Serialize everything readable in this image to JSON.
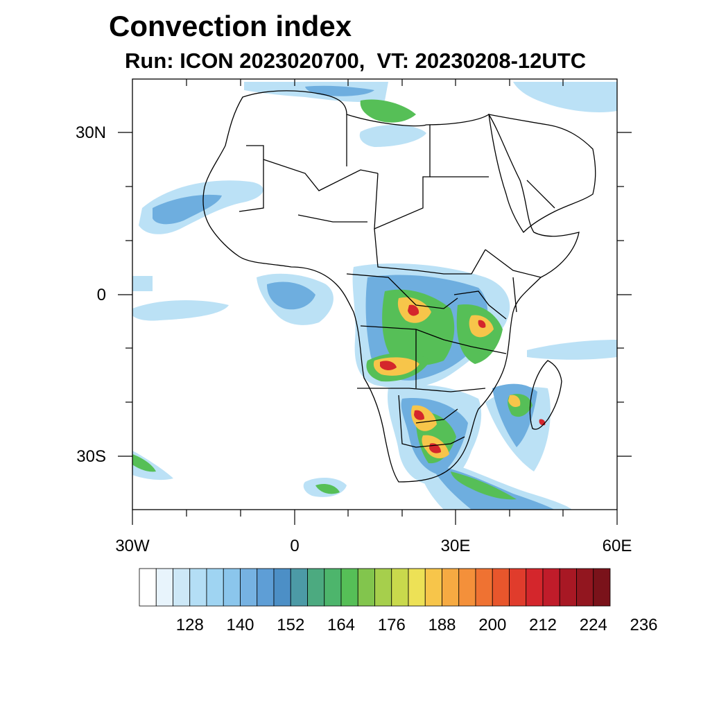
{
  "title": "Convection index",
  "subtitle": "Run: ICON 2023020700,  VT: 20230208-12UTC",
  "map": {
    "lon_range": [
      -30,
      60
    ],
    "lat_range": [
      -40,
      40
    ],
    "lon_ticks": [
      {
        "value": -30,
        "label": "30W"
      },
      {
        "value": 0,
        "label": "0"
      },
      {
        "value": 30,
        "label": "30E"
      },
      {
        "value": 60,
        "label": "60E"
      }
    ],
    "lat_ticks": [
      {
        "value": 30,
        "label": "30N"
      },
      {
        "value": 0,
        "label": "0"
      },
      {
        "value": -30,
        "label": "30S"
      }
    ]
  },
  "colorbar": {
    "colors": [
      "#ffffff",
      "#e8f4fc",
      "#cde8f7",
      "#b4def5",
      "#9fd4f2",
      "#8bc6ec",
      "#76b2e2",
      "#5e9ed6",
      "#4c8fc6",
      "#4c9aa6",
      "#4caa80",
      "#4db56c",
      "#56bf57",
      "#82c54d",
      "#a6cf4c",
      "#c9d94c",
      "#ede156",
      "#f7c54a",
      "#f6aa42",
      "#f4903a",
      "#ef7232",
      "#e8562c",
      "#e03c2c",
      "#d4262c",
      "#c01c2a",
      "#a81824",
      "#92161f",
      "#7a121a"
    ],
    "labels": [
      "128",
      "140",
      "152",
      "164",
      "176",
      "188",
      "200",
      "212",
      "224",
      "236"
    ]
  },
  "legend_meaning": "Convection index"
}
